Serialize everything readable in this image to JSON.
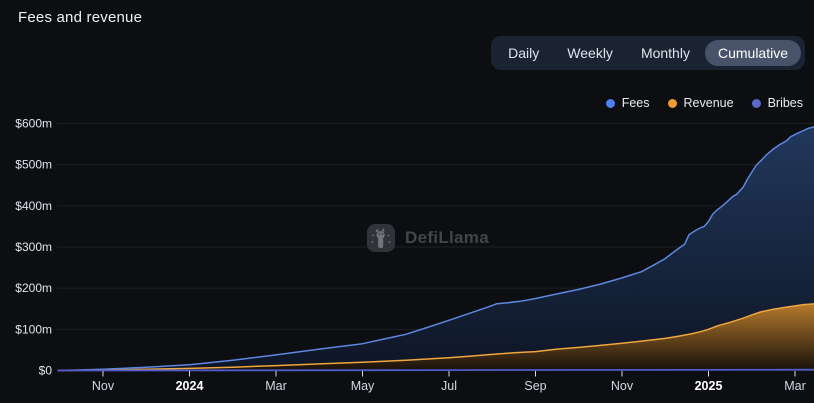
{
  "page": {
    "title": "Fees and revenue",
    "background": "#0c0e12"
  },
  "tabs": {
    "items": [
      {
        "label": "Daily",
        "selected": false
      },
      {
        "label": "Weekly",
        "selected": false
      },
      {
        "label": "Monthly",
        "selected": false
      },
      {
        "label": "Cumulative",
        "selected": true
      }
    ]
  },
  "legend": {
    "position": "top-right",
    "items": [
      {
        "label": "Fees",
        "color": "#4e80ee"
      },
      {
        "label": "Revenue",
        "color": "#ee9b32"
      },
      {
        "label": "Bribes",
        "color": "#5b68c7"
      }
    ]
  },
  "watermark": {
    "label": "DefiLlama",
    "icon": "llama-logo-icon"
  },
  "chart_data": {
    "type": "area",
    "title": "Fees and revenue",
    "mode": "Cumulative",
    "unit": "$m USD",
    "grid": true,
    "x_range_label": "Oct 2023 – Mar 2025",
    "ylim": [
      0,
      600
    ],
    "y_ticks": {
      "values": [
        0,
        100,
        200,
        300,
        400,
        500,
        600
      ],
      "labels": [
        "$0",
        "$100m",
        "$200m",
        "$300m",
        "$400m",
        "$500m",
        "$600m"
      ]
    },
    "x_ticks": [
      {
        "label": "Nov",
        "month": 0,
        "bold": false
      },
      {
        "label": "2024",
        "month": 2,
        "bold": true
      },
      {
        "label": "Mar",
        "month": 4,
        "bold": false
      },
      {
        "label": "May",
        "month": 6,
        "bold": false
      },
      {
        "label": "Jul",
        "month": 8,
        "bold": false
      },
      {
        "label": "Sep",
        "month": 10,
        "bold": false
      },
      {
        "label": "Nov",
        "month": 12,
        "bold": false
      },
      {
        "label": "2025",
        "month": 14,
        "bold": true
      },
      {
        "label": "Mar",
        "month": 16,
        "bold": false
      }
    ],
    "x_unit": "months since Nov 1 2023",
    "series": [
      {
        "name": "Fees",
        "line_color": "#5d87e0",
        "fill_top": "#22395f",
        "fill_bottom": "#0e1626",
        "points": [
          [
            -1.05,
            0
          ],
          [
            0,
            3
          ],
          [
            1,
            8
          ],
          [
            2,
            14
          ],
          [
            3,
            25
          ],
          [
            4,
            38
          ],
          [
            5,
            52
          ],
          [
            6,
            65
          ],
          [
            7,
            88
          ],
          [
            7.45,
            103
          ],
          [
            8,
            122
          ],
          [
            8.5,
            140
          ],
          [
            8.95,
            156
          ],
          [
            9.1,
            162
          ],
          [
            9.3,
            164
          ],
          [
            9.65,
            168
          ],
          [
            10,
            175
          ],
          [
            10.5,
            186
          ],
          [
            11,
            197
          ],
          [
            11.5,
            210
          ],
          [
            12,
            225
          ],
          [
            12.45,
            240
          ],
          [
            12.75,
            257
          ],
          [
            13,
            272
          ],
          [
            13.2,
            288
          ],
          [
            13.45,
            307
          ],
          [
            13.55,
            330
          ],
          [
            13.7,
            340
          ],
          [
            13.8,
            346
          ],
          [
            13.9,
            350
          ],
          [
            14,
            362
          ],
          [
            14.1,
            380
          ],
          [
            14.2,
            390
          ],
          [
            14.3,
            398
          ],
          [
            14.45,
            412
          ],
          [
            14.55,
            422
          ],
          [
            14.65,
            428
          ],
          [
            14.8,
            445
          ],
          [
            14.9,
            465
          ],
          [
            15,
            482
          ],
          [
            15.1,
            498
          ],
          [
            15.25,
            514
          ],
          [
            15.35,
            525
          ],
          [
            15.5,
            538
          ],
          [
            15.65,
            549
          ],
          [
            15.8,
            558
          ],
          [
            15.9,
            568
          ],
          [
            16.05,
            576
          ],
          [
            16.2,
            583
          ],
          [
            16.3,
            588
          ],
          [
            16.45,
            592
          ]
        ]
      },
      {
        "name": "Revenue",
        "line_color": "#efa63e",
        "fill_top": "#bd7e2c",
        "fill_bottom": "#17100a",
        "points": [
          [
            -1.05,
            0
          ],
          [
            0,
            1
          ],
          [
            1,
            3
          ],
          [
            2,
            5
          ],
          [
            3,
            8
          ],
          [
            4,
            12
          ],
          [
            5,
            16
          ],
          [
            6,
            20
          ],
          [
            7,
            25
          ],
          [
            8,
            31
          ],
          [
            8.5,
            35
          ],
          [
            9,
            39
          ],
          [
            9.5,
            43
          ],
          [
            10,
            46
          ],
          [
            10.5,
            52
          ],
          [
            11,
            56
          ],
          [
            11.5,
            61
          ],
          [
            12,
            66
          ],
          [
            12.5,
            72
          ],
          [
            13,
            78
          ],
          [
            13.3,
            83
          ],
          [
            13.6,
            89
          ],
          [
            13.8,
            94
          ],
          [
            14,
            100
          ],
          [
            14.2,
            108
          ],
          [
            14.5,
            117
          ],
          [
            14.8,
            127
          ],
          [
            15,
            135
          ],
          [
            15.2,
            142
          ],
          [
            15.5,
            149
          ],
          [
            15.8,
            154
          ],
          [
            16,
            157
          ],
          [
            16.2,
            160
          ],
          [
            16.45,
            162
          ]
        ]
      },
      {
        "name": "Bribes",
        "line_color": "#4f5ac8",
        "fill_top": null,
        "fill_bottom": null,
        "points": [
          [
            -1.05,
            0
          ],
          [
            8,
            1
          ],
          [
            16.45,
            2
          ]
        ]
      }
    ]
  }
}
